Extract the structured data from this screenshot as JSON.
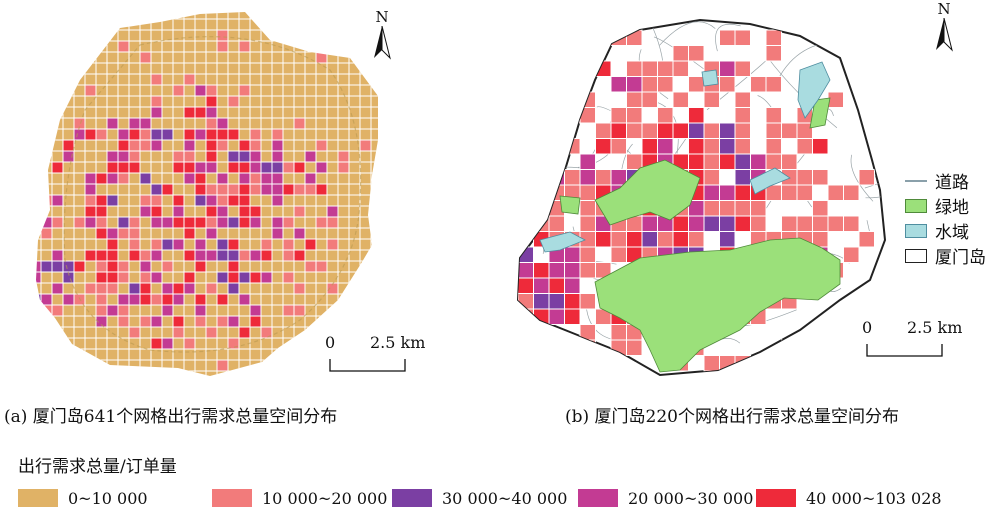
{
  "captions": {
    "a": "(a) 厦门岛641个网格出行需求总量空间分布",
    "b": "(b) 厦门岛220个网格出行需求总量空间分布"
  },
  "legend": {
    "title": "出行需求总量/订单量",
    "items": [
      {
        "label": "0~10 000",
        "color": "#E0B266"
      },
      {
        "label": "10 000~20 000",
        "color": "#F27B7B"
      },
      {
        "label": "30 000~40 000",
        "color": "#7B3FA3"
      },
      {
        "label": "20 000~30 000",
        "color": "#C33B93"
      },
      {
        "label": "40 000~103 028",
        "color": "#EE2A3A"
      }
    ]
  },
  "map_legend": {
    "items": [
      {
        "label": "道路",
        "icon": "road-line-icon",
        "color": "#8aa0aa"
      },
      {
        "label": "绿地",
        "icon": "green-patch-icon",
        "color": "#9BE07A"
      },
      {
        "label": "水域",
        "icon": "water-patch-icon",
        "color": "#A9DCE0"
      },
      {
        "label": "厦门岛",
        "icon": "island-outline-icon",
        "color": "#ffffff"
      }
    ]
  },
  "scalebar": {
    "zero": "0",
    "distance": "2.5 km"
  },
  "north": {
    "label": "N"
  }
}
